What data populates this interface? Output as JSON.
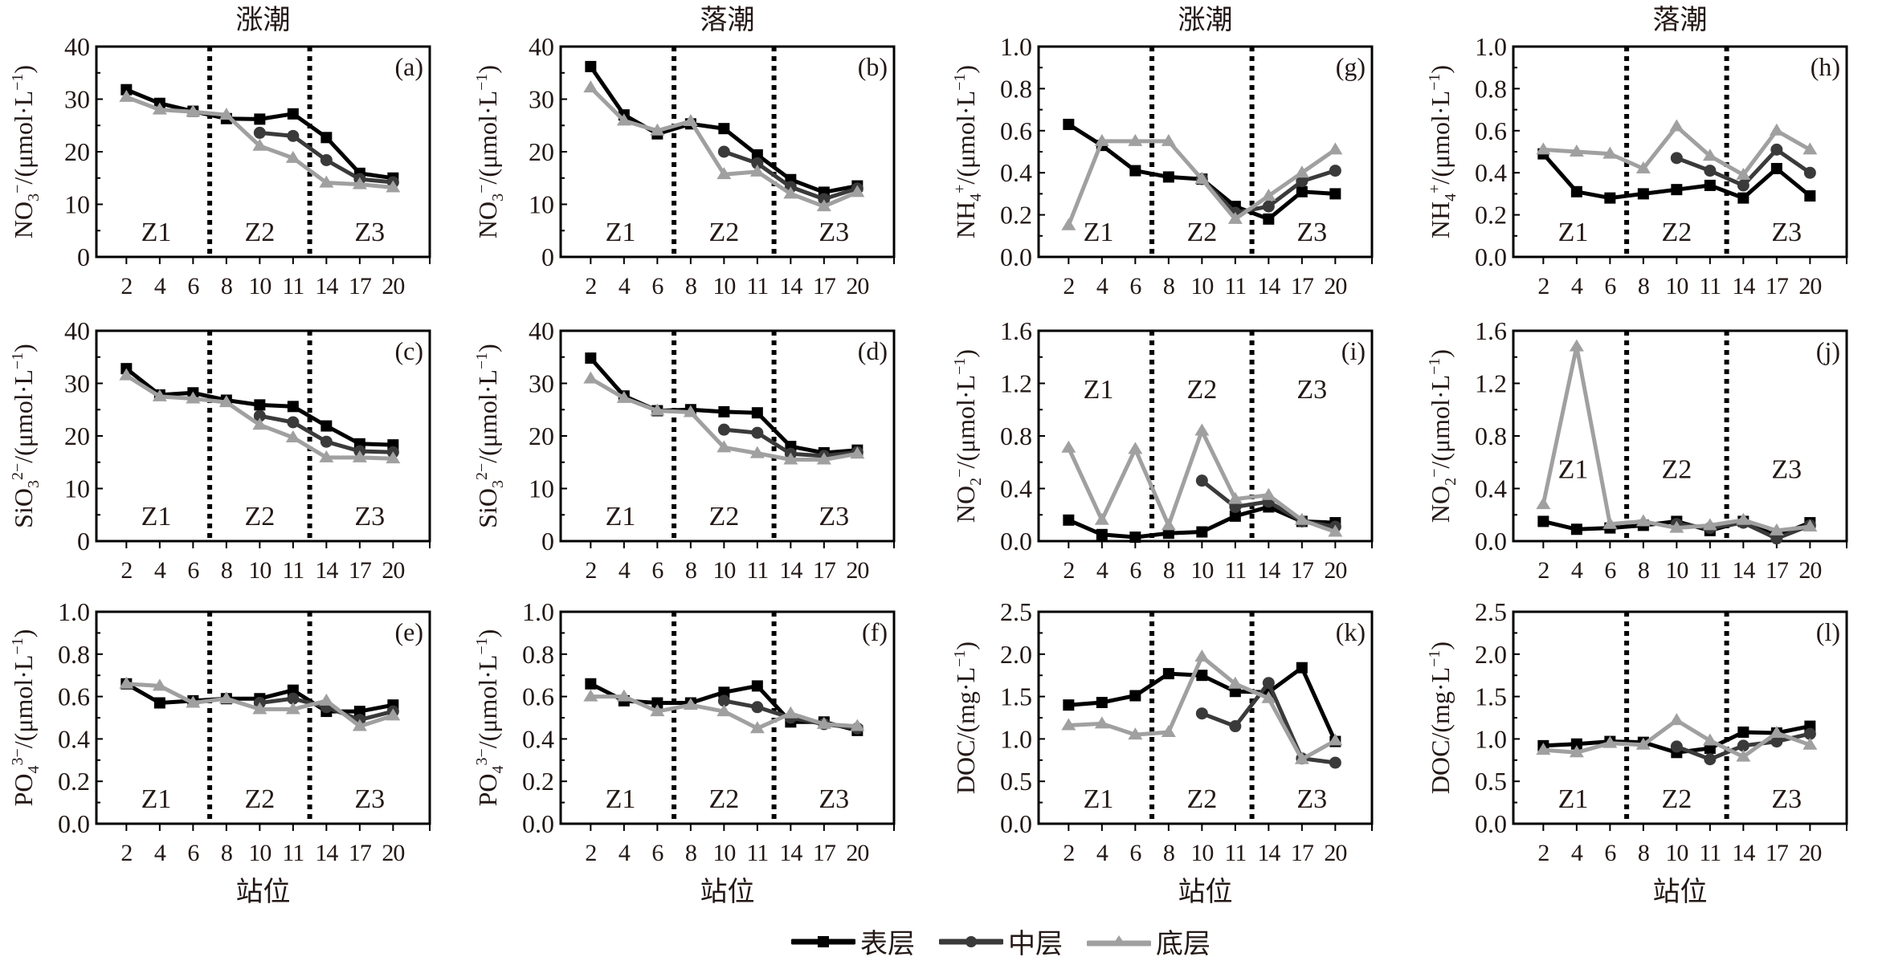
{
  "chart_data": {
    "type": "line",
    "x_label": "站位",
    "stations": [
      "2",
      "4",
      "6",
      "8",
      "10",
      "11",
      "14",
      "17",
      "20"
    ],
    "zone_labels": [
      "Z1",
      "Z2",
      "Z3"
    ],
    "zone_boundaries_after_index": [
      2.5,
      5.5
    ],
    "legend": [
      {
        "name": "表层",
        "marker": "square",
        "color": "#000000"
      },
      {
        "name": "中层",
        "marker": "circle",
        "color": "#3a3a3a"
      },
      {
        "name": "底层",
        "marker": "triangle",
        "color": "#a0a0a0"
      }
    ],
    "column_titles": [
      "涨潮",
      "落潮",
      "涨潮",
      "落潮"
    ],
    "panels": [
      {
        "id": "a",
        "label": "(a)",
        "ylabel": "NO3−/(μmol·L−1)",
        "ylabel_main": "NO",
        "ylabel_sub": "3",
        "ylabel_sup": "−",
        "ylabel_unit": "/(μmol·L",
        "ylabel_unit_sup": "−1",
        "ylabel_close": ")",
        "ylim": [
          0,
          40
        ],
        "yticks": [
          "0",
          "10",
          "20",
          "30",
          "40"
        ],
        "zone_label_level": "bottom",
        "series": [
          {
            "name": "表层",
            "values": [
              31.8,
              29.2,
              27.7,
              26.3,
              26.2,
              27.2,
              22.7,
              15.9,
              15.0
            ]
          },
          {
            "name": "中层",
            "values": [
              null,
              null,
              null,
              null,
              23.6,
              23.0,
              18.4,
              14.8,
              14.2
            ]
          },
          {
            "name": "底层",
            "values": [
              30.4,
              28.0,
              27.6,
              27.0,
              21.1,
              18.8,
              14.1,
              13.8,
              13.2
            ]
          }
        ]
      },
      {
        "id": "b",
        "label": "(b)",
        "ylabel": "NO3−/(μmol·L−1)",
        "ylabel_main": "NO",
        "ylabel_sub": "3",
        "ylabel_sup": "−",
        "ylabel_unit": "/(μmol·L",
        "ylabel_unit_sup": "−1",
        "ylabel_close": ")",
        "ylim": [
          0,
          40
        ],
        "yticks": [
          "0",
          "10",
          "20",
          "30",
          "40"
        ],
        "zone_label_level": "bottom",
        "series": [
          {
            "name": "表层",
            "values": [
              36.2,
              27.0,
              23.4,
              25.3,
              24.4,
              19.4,
              14.7,
              12.3,
              13.5
            ]
          },
          {
            "name": "中层",
            "values": [
              null,
              null,
              null,
              null,
              20.0,
              17.8,
              13.3,
              11.0,
              13.0
            ]
          },
          {
            "name": "底层",
            "values": [
              32.2,
              25.9,
              24.0,
              25.8,
              15.7,
              16.2,
              12.0,
              9.6,
              12.3
            ]
          }
        ]
      },
      {
        "id": "g",
        "label": "(g)",
        "ylabel": "NH4+/(μmol·L−1)",
        "ylabel_main": "NH",
        "ylabel_sub": "4",
        "ylabel_sup": "+",
        "ylabel_unit": "/(μmol·L",
        "ylabel_unit_sup": "−1",
        "ylabel_close": ")",
        "ylim": [
          0,
          1.0
        ],
        "yticks": [
          "0.0",
          "0.2",
          "0.4",
          "0.6",
          "0.8",
          "1.0"
        ],
        "zone_label_level": "bottom",
        "series": [
          {
            "name": "表层",
            "values": [
              0.63,
              0.53,
              0.41,
              0.38,
              0.37,
              0.24,
              0.18,
              0.31,
              0.3
            ]
          },
          {
            "name": "中层",
            "values": [
              null,
              null,
              null,
              null,
              0.37,
              0.21,
              0.24,
              0.36,
              0.41
            ]
          },
          {
            "name": "底层",
            "values": [
              0.15,
              0.55,
              0.55,
              0.55,
              0.37,
              0.18,
              0.29,
              0.4,
              0.51
            ]
          }
        ]
      },
      {
        "id": "h",
        "label": "(h)",
        "ylabel": "NH4+/(μmol·L−1)",
        "ylabel_main": "NH",
        "ylabel_sub": "4",
        "ylabel_sup": "+",
        "ylabel_unit": "/(μmol·L",
        "ylabel_unit_sup": "−1",
        "ylabel_close": ")",
        "ylim": [
          0,
          1.0
        ],
        "yticks": [
          "0.0",
          "0.2",
          "0.4",
          "0.6",
          "0.8",
          "1.0"
        ],
        "zone_label_level": "bottom",
        "series": [
          {
            "name": "表层",
            "values": [
              0.49,
              0.31,
              0.28,
              0.3,
              0.32,
              0.34,
              0.28,
              0.42,
              0.29
            ]
          },
          {
            "name": "中层",
            "values": [
              null,
              null,
              null,
              null,
              0.47,
              0.41,
              0.34,
              0.51,
              0.4
            ]
          },
          {
            "name": "底层",
            "values": [
              0.51,
              0.5,
              0.49,
              0.42,
              0.62,
              0.48,
              0.39,
              0.6,
              0.51
            ]
          }
        ]
      },
      {
        "id": "c",
        "label": "(c)",
        "ylabel": "SiO32−/(μmol·L−1)",
        "ylabel_main": "SiO",
        "ylabel_sub": "3",
        "ylabel_sup": "2−",
        "ylabel_unit": "/(μmol·L",
        "ylabel_unit_sup": "−1",
        "ylabel_close": ")",
        "ylim": [
          0,
          40
        ],
        "yticks": [
          "0",
          "10",
          "20",
          "30",
          "40"
        ],
        "zone_label_level": "bottom",
        "series": [
          {
            "name": "表层",
            "values": [
              32.8,
              27.8,
              28.2,
              26.8,
              25.9,
              25.6,
              21.9,
              18.5,
              18.3
            ]
          },
          {
            "name": "中层",
            "values": [
              null,
              null,
              null,
              null,
              23.8,
              22.6,
              18.9,
              17.1,
              16.9
            ]
          },
          {
            "name": "底层",
            "values": [
              31.5,
              27.5,
              27.1,
              26.4,
              22.1,
              19.7,
              15.9,
              15.9,
              15.7
            ]
          }
        ]
      },
      {
        "id": "d",
        "label": "(d)",
        "ylabel": "SiO32−/(μmol·L−1)",
        "ylabel_main": "SiO",
        "ylabel_sub": "3",
        "ylabel_sup": "2−",
        "ylabel_unit": "/(μmol·L",
        "ylabel_unit_sup": "−1",
        "ylabel_close": ")",
        "ylim": [
          0,
          40
        ],
        "yticks": [
          "0",
          "10",
          "20",
          "30",
          "40"
        ],
        "zone_label_level": "bottom",
        "series": [
          {
            "name": "表层",
            "values": [
              34.8,
              27.6,
              24.8,
              25.0,
              24.6,
              24.4,
              18.0,
              16.8,
              17.3
            ]
          },
          {
            "name": "中层",
            "values": [
              null,
              null,
              null,
              null,
              21.2,
              20.6,
              16.6,
              16.2,
              16.9
            ]
          },
          {
            "name": "底层",
            "values": [
              30.9,
              27.2,
              24.8,
              24.5,
              17.8,
              16.7,
              15.5,
              15.5,
              16.6
            ]
          }
        ]
      },
      {
        "id": "i",
        "label": "(i)",
        "ylabel": "NO2−/(μmol·L−1)",
        "ylabel_main": "NO",
        "ylabel_sub": "2",
        "ylabel_sup": "−",
        "ylabel_unit": "/(μmol·L",
        "ylabel_unit_sup": "−1",
        "ylabel_close": ")",
        "ylim": [
          0,
          1.6
        ],
        "yticks": [
          "0.0",
          "0.4",
          "0.8",
          "1.2",
          "1.6"
        ],
        "zone_label_level": "top",
        "series": [
          {
            "name": "表层",
            "values": [
              0.16,
              0.05,
              0.03,
              0.06,
              0.07,
              0.19,
              0.26,
              0.15,
              0.14
            ]
          },
          {
            "name": "中层",
            "values": [
              null,
              null,
              null,
              null,
              0.46,
              0.26,
              0.3,
              0.15,
              0.11
            ]
          },
          {
            "name": "底层",
            "values": [
              0.71,
              0.16,
              0.7,
              0.12,
              0.84,
              0.32,
              0.35,
              0.16,
              0.07
            ]
          }
        ]
      },
      {
        "id": "j",
        "label": "(j)",
        "ylabel": "NO2−/(μmol·L−1)",
        "ylabel_main": "NO",
        "ylabel_sub": "2",
        "ylabel_sup": "−",
        "ylabel_unit": "/(μmol·L",
        "ylabel_unit_sup": "−1",
        "ylabel_close": ")",
        "ylim": [
          0,
          1.6
        ],
        "yticks": [
          "0.0",
          "0.4",
          "0.8",
          "1.2",
          "1.6"
        ],
        "zone_label_level": "mid",
        "series": [
          {
            "name": "表层",
            "values": [
              0.15,
              0.09,
              0.1,
              0.12,
              0.15,
              0.08,
              0.15,
              0.04,
              0.14
            ]
          },
          {
            "name": "中层",
            "values": [
              null,
              null,
              null,
              null,
              0.13,
              0.1,
              0.14,
              0.02,
              0.12
            ]
          },
          {
            "name": "底层",
            "values": [
              0.28,
              1.48,
              0.13,
              0.15,
              0.1,
              0.12,
              0.16,
              0.08,
              0.11
            ]
          }
        ]
      },
      {
        "id": "e",
        "label": "(e)",
        "ylabel": "PO43−/(μmol·L−1)",
        "ylabel_main": "PO",
        "ylabel_sub": "4",
        "ylabel_sup": "3−",
        "ylabel_unit": "/(μmol·L",
        "ylabel_unit_sup": "−1",
        "ylabel_close": ")",
        "ylim": [
          0,
          1.0
        ],
        "yticks": [
          "0.0",
          "0.2",
          "0.4",
          "0.6",
          "0.8",
          "1.0"
        ],
        "zone_label_level": "bottom",
        "series": [
          {
            "name": "表层",
            "values": [
              0.66,
              0.57,
              0.58,
              0.59,
              0.59,
              0.63,
              0.53,
              0.53,
              0.56
            ]
          },
          {
            "name": "中层",
            "values": [
              null,
              null,
              null,
              null,
              0.57,
              0.59,
              0.55,
              0.49,
              0.53
            ]
          },
          {
            "name": "底层",
            "values": [
              0.66,
              0.65,
              0.57,
              0.59,
              0.54,
              0.54,
              0.58,
              0.46,
              0.51
            ]
          }
        ]
      },
      {
        "id": "f",
        "label": "(f)",
        "ylabel": "PO43−/(μmol·L−1)",
        "ylabel_main": "PO",
        "ylabel_sub": "4",
        "ylabel_sup": "3−",
        "ylabel_unit": "/(μmol·L",
        "ylabel_unit_sup": "−1",
        "ylabel_close": ")",
        "ylim": [
          0,
          1.0
        ],
        "yticks": [
          "0.0",
          "0.2",
          "0.4",
          "0.6",
          "0.8",
          "1.0"
        ],
        "zone_label_level": "bottom",
        "series": [
          {
            "name": "表层",
            "values": [
              0.66,
              0.58,
              0.57,
              0.57,
              0.62,
              0.65,
              0.48,
              0.48,
              0.44
            ]
          },
          {
            "name": "中层",
            "values": [
              null,
              null,
              null,
              null,
              0.58,
              0.55,
              0.5,
              0.47,
              0.45
            ]
          },
          {
            "name": "底层",
            "values": [
              0.6,
              0.6,
              0.53,
              0.56,
              0.53,
              0.45,
              0.52,
              0.47,
              0.46
            ]
          }
        ]
      },
      {
        "id": "k",
        "label": "(k)",
        "ylabel": "DOC/(mg·L−1)",
        "ylabel_main": "DOC",
        "ylabel_sub": "",
        "ylabel_sup": "",
        "ylabel_unit": "/(mg·L",
        "ylabel_unit_sup": "−1",
        "ylabel_close": ")",
        "ylim": [
          0,
          2.5
        ],
        "yticks": [
          "0.0",
          "0.5",
          "1.0",
          "1.5",
          "2.0",
          "2.5"
        ],
        "zone_label_level": "bottom",
        "series": [
          {
            "name": "表层",
            "values": [
              1.4,
              1.43,
              1.51,
              1.77,
              1.75,
              1.56,
              1.55,
              1.84,
              0.97
            ]
          },
          {
            "name": "中层",
            "values": [
              null,
              null,
              null,
              null,
              1.3,
              1.15,
              1.66,
              0.77,
              0.72
            ]
          },
          {
            "name": "底层",
            "values": [
              1.16,
              1.18,
              1.05,
              1.08,
              1.97,
              1.65,
              1.48,
              0.76,
              0.98
            ]
          }
        ]
      },
      {
        "id": "l",
        "label": "(l)",
        "ylabel": "DOC/(mg·L−1)",
        "ylabel_main": "DOC",
        "ylabel_sub": "",
        "ylabel_sup": "",
        "ylabel_unit": "/(mg·L",
        "ylabel_unit_sup": "−1",
        "ylabel_close": ")",
        "ylim": [
          0,
          2.5
        ],
        "yticks": [
          "0.0",
          "0.5",
          "1.0",
          "1.5",
          "2.0",
          "2.5"
        ],
        "zone_label_level": "bottom",
        "series": [
          {
            "name": "表层",
            "values": [
              0.92,
              0.94,
              0.97,
              0.96,
              0.84,
              0.89,
              1.08,
              1.07,
              1.15
            ]
          },
          {
            "name": "中层",
            "values": [
              null,
              null,
              null,
              null,
              0.91,
              0.76,
              0.92,
              0.97,
              1.06
            ]
          },
          {
            "name": "底层",
            "values": [
              0.87,
              0.84,
              0.95,
              0.93,
              1.22,
              0.98,
              0.79,
              1.07,
              0.93
            ]
          }
        ]
      }
    ]
  }
}
